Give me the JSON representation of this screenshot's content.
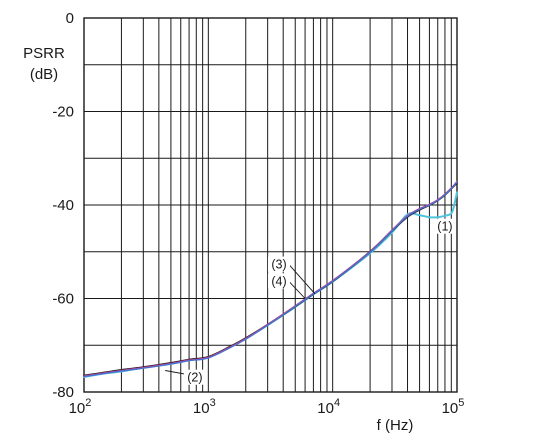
{
  "chart_data": {
    "type": "line",
    "xlabel": "f (Hz)",
    "ylabel_lines": [
      "PSRR",
      "(dB)"
    ],
    "x_scale": "log",
    "xlim": [
      100,
      100000
    ],
    "ylim": [
      -80,
      0
    ],
    "grid": true,
    "x_ticks": [
      {
        "value": 100,
        "base": "10",
        "exp": "2"
      },
      {
        "value": 1000,
        "base": "10",
        "exp": "3"
      },
      {
        "value": 10000,
        "base": "10",
        "exp": "4"
      },
      {
        "value": 100000,
        "base": "10",
        "exp": "5"
      }
    ],
    "y_ticks": [
      {
        "value": 0,
        "label": "0"
      },
      {
        "value": -20,
        "label": "-20"
      },
      {
        "value": -40,
        "label": "-40"
      },
      {
        "value": -60,
        "label": "-60"
      },
      {
        "value": -80,
        "label": "-80"
      }
    ],
    "series": [
      {
        "name": "(1)",
        "color": "#4fc3dc",
        "width": 2.0,
        "x": [
          100,
          150,
          200,
          300,
          500,
          700,
          1000,
          1500,
          2000,
          3000,
          5000,
          7000,
          10000,
          20000,
          30000,
          40000,
          50000,
          60000,
          70000,
          80000,
          90000,
          95000,
          100000
        ],
        "y": [
          -76.8,
          -76.0,
          -75.6,
          -74.8,
          -74.0,
          -73.2,
          -72.6,
          -70.4,
          -68.6,
          -65.7,
          -61.8,
          -59.1,
          -56.4,
          -50.3,
          -45.9,
          -42.0,
          -42.2,
          -42.6,
          -42.6,
          -42.3,
          -41.8,
          -40.0,
          -37.3
        ]
      },
      {
        "name": "(2)",
        "color": "#1b1b1b",
        "width": 2.0,
        "x": [
          100,
          150,
          200,
          300,
          500,
          700,
          1000,
          1500,
          2000,
          3000,
          5000,
          7000,
          10000,
          20000,
          30000,
          40000,
          50000,
          60000,
          70000,
          80000,
          90000,
          100000
        ],
        "y": [
          -76.5,
          -75.8,
          -75.3,
          -74.7,
          -73.8,
          -73.1,
          -72.5,
          -70.3,
          -68.5,
          -65.6,
          -61.7,
          -59.0,
          -56.3,
          -50.0,
          -45.5,
          -42.5,
          -41.0,
          -40.0,
          -39.0,
          -37.8,
          -36.5,
          -35.2
        ]
      },
      {
        "name": "(3)",
        "color": "#d23c8c",
        "width": 1.6,
        "x": [
          100,
          150,
          200,
          300,
          500,
          700,
          1000,
          1500,
          2000,
          3000,
          5000,
          7000,
          10000,
          20000,
          30000,
          40000,
          50000,
          60000,
          70000,
          80000,
          90000,
          100000
        ],
        "y": [
          -76.6,
          -75.9,
          -75.4,
          -74.8,
          -73.9,
          -73.2,
          -72.6,
          -70.4,
          -68.6,
          -65.6,
          -61.6,
          -58.9,
          -56.2,
          -50.0,
          -45.4,
          -42.3,
          -40.8,
          -39.9,
          -38.9,
          -37.7,
          -36.4,
          -35.0
        ]
      },
      {
        "name": "(4)",
        "color": "#4a6fd0",
        "width": 1.4,
        "x": [
          100,
          150,
          200,
          300,
          500,
          700,
          1000,
          1500,
          2000,
          3000,
          5000,
          7000,
          10000,
          20000,
          30000,
          40000,
          50000,
          60000,
          70000,
          80000,
          90000,
          100000
        ],
        "y": [
          -76.7,
          -76.0,
          -75.5,
          -74.9,
          -74.0,
          -73.3,
          -72.7,
          -70.5,
          -68.7,
          -65.7,
          -61.7,
          -59.0,
          -56.3,
          -50.1,
          -45.5,
          -42.4,
          -40.9,
          -40.0,
          -39.0,
          -37.8,
          -36.5,
          -35.1
        ]
      }
    ],
    "annotations": [
      {
        "text": "(1)",
        "at": [
          80000,
          -45.5
        ],
        "target": null
      },
      {
        "text": "(2)",
        "at": [
          780,
          -77.8
        ],
        "target": [
          450,
          -75.4
        ]
      },
      {
        "text": "(3)",
        "at": [
          3700,
          -53.6
        ],
        "target": [
          7200,
          -59.0
        ]
      },
      {
        "text": "(4)",
        "at": [
          3700,
          -57.2
        ],
        "target": [
          6000,
          -60.0
        ]
      }
    ]
  }
}
